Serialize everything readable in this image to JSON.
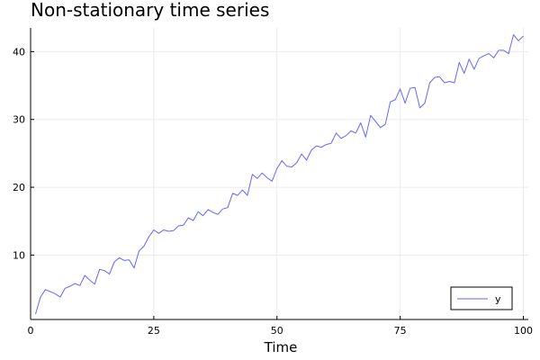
{
  "chart_data": {
    "type": "line",
    "title": "Non-stationary time series",
    "xlabel": "Time",
    "ylabel": "",
    "xlim": [
      0,
      101
    ],
    "ylim": [
      0.5,
      43.5
    ],
    "xticks": [
      0,
      25,
      50,
      75,
      100
    ],
    "yticks": [
      10,
      20,
      30,
      40
    ],
    "grid": true,
    "legend": {
      "position": "bottom-right"
    },
    "series": [
      {
        "name": "y",
        "color": "#6666ff",
        "x": [
          1,
          2,
          3,
          4,
          5,
          6,
          7,
          8,
          9,
          10,
          11,
          12,
          13,
          14,
          15,
          16,
          17,
          18,
          19,
          20,
          21,
          22,
          23,
          24,
          25,
          26,
          27,
          28,
          29,
          30,
          31,
          32,
          33,
          34,
          35,
          36,
          37,
          38,
          39,
          40,
          41,
          42,
          43,
          44,
          45,
          46,
          47,
          48,
          49,
          50,
          51,
          52,
          53,
          54,
          55,
          56,
          57,
          58,
          59,
          60,
          61,
          62,
          63,
          64,
          65,
          66,
          67,
          68,
          69,
          70,
          71,
          72,
          73,
          74,
          75,
          76,
          77,
          78,
          79,
          80,
          81,
          82,
          83,
          84,
          85,
          86,
          87,
          88,
          89,
          90,
          91,
          92,
          93,
          94,
          95,
          96,
          97,
          98,
          99,
          100
        ],
        "values": [
          1.3,
          3.8,
          4.9,
          4.6,
          4.3,
          3.8,
          5.1,
          5.4,
          5.8,
          5.5,
          7.0,
          6.3,
          5.7,
          7.9,
          7.7,
          7.2,
          9.0,
          9.6,
          9.2,
          9.3,
          8.1,
          10.6,
          11.3,
          12.7,
          13.7,
          13.2,
          13.7,
          13.5,
          13.6,
          14.3,
          14.4,
          15.5,
          15.1,
          16.4,
          15.8,
          16.7,
          16.3,
          16.0,
          16.8,
          17.0,
          19.1,
          18.8,
          19.6,
          18.8,
          21.9,
          21.3,
          22.1,
          21.4,
          20.9,
          22.8,
          23.9,
          23.1,
          23.0,
          23.6,
          24.9,
          24.0,
          25.5,
          26.1,
          25.9,
          26.3,
          26.5,
          28.0,
          27.2,
          27.6,
          28.3,
          28.0,
          29.5,
          27.4,
          30.6,
          29.7,
          28.8,
          29.3,
          32.6,
          32.9,
          34.5,
          32.4,
          34.6,
          34.7,
          31.7,
          32.4,
          35.4,
          36.2,
          36.3,
          35.4,
          35.6,
          35.4,
          38.4,
          36.8,
          38.9,
          37.4,
          39.0,
          39.4,
          39.7,
          39.1,
          40.2,
          40.2,
          39.7,
          42.5,
          41.6,
          42.3
        ]
      }
    ]
  }
}
